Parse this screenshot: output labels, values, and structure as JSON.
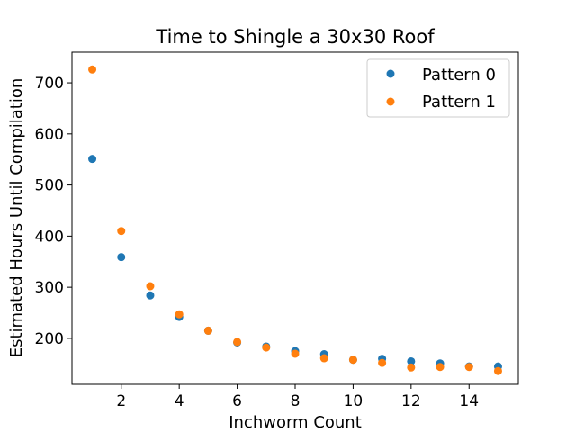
{
  "chart_data": {
    "type": "scatter",
    "title": "Time to Shingle a 30x30 Roof",
    "xlabel": "Inchworm Count",
    "ylabel": "Estimated Hours Until Compilation",
    "xlim": [
      0.3,
      15.7
    ],
    "ylim": [
      110,
      760
    ],
    "xticks": [
      2,
      4,
      6,
      8,
      10,
      12,
      14
    ],
    "yticks": [
      200,
      300,
      400,
      500,
      600,
      700
    ],
    "legend_position": "top-right",
    "grid": false,
    "series": [
      {
        "name": "Pattern 0",
        "color": "#1f77b4",
        "x": [
          1,
          2,
          3,
          4,
          5,
          6,
          7,
          8,
          9,
          10,
          11,
          12,
          13,
          14,
          15
        ],
        "y": [
          551,
          359,
          284,
          242,
          215,
          192,
          184,
          175,
          169,
          158,
          160,
          155,
          151,
          145,
          145
        ]
      },
      {
        "name": "Pattern 1",
        "color": "#ff7f0e",
        "x": [
          1,
          2,
          3,
          4,
          5,
          6,
          7,
          8,
          9,
          10,
          11,
          12,
          13,
          14,
          15
        ],
        "y": [
          726,
          410,
          302,
          247,
          215,
          193,
          182,
          170,
          161,
          158,
          152,
          143,
          144,
          144,
          136
        ]
      }
    ]
  }
}
